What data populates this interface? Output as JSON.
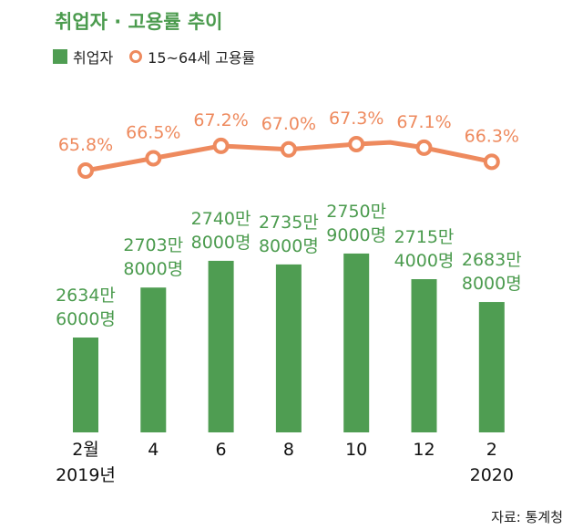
{
  "title": "취업자 · 고용률 추이",
  "legend": {
    "bar": "취업자",
    "line": "15~64세 고용률"
  },
  "source": "자료: 통계청",
  "colors": {
    "bar": "#4f9d52",
    "line": "#ee8a5e",
    "bar_label": "#4b9b4e",
    "line_label": "#ee8a5e"
  },
  "chart_data": {
    "type": "bar",
    "categories": [
      [
        "2월",
        "2019년"
      ],
      [
        "4"
      ],
      [
        "6"
      ],
      [
        "8"
      ],
      [
        "10"
      ],
      [
        "12"
      ],
      [
        "2",
        "2020"
      ]
    ],
    "series": [
      {
        "name": "취업자",
        "type": "bar",
        "values": [
          26346000,
          27038000,
          27408000,
          27358000,
          27509000,
          27154000,
          26838000
        ],
        "labels": [
          [
            "2634만",
            "6000명"
          ],
          [
            "2703만",
            "8000명"
          ],
          [
            "2740만",
            "8000명"
          ],
          [
            "2735만",
            "8000명"
          ],
          [
            "2750만",
            "9000명"
          ],
          [
            "2715만",
            "4000명"
          ],
          [
            "2683만",
            "8000명"
          ]
        ]
      },
      {
        "name": "15~64세 고용률",
        "type": "line",
        "values": [
          65.8,
          66.5,
          67.2,
          67.0,
          67.3,
          67.1,
          66.3
        ],
        "labels": [
          "65.8%",
          "66.5%",
          "67.2%",
          "67.0%",
          "67.3%",
          "67.1%",
          "66.3%"
        ],
        "unlabeled_points": [
          {
            "x_index": 2.5,
            "value": 67.1
          },
          {
            "x_index": 4.5,
            "value": 67.4
          }
        ]
      }
    ],
    "grid": false,
    "legend_position": "top-left"
  }
}
